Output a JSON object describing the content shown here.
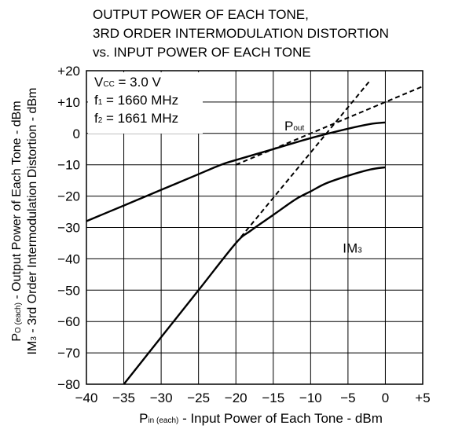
{
  "chart_data": {
    "type": "line",
    "title_lines": [
      "OUTPUT POWER OF EACH TONE,",
      "3RD ORDER INTERMODULATION DISTORTION",
      "vs. INPUT POWER OF EACH TONE"
    ],
    "xlabel": {
      "main": "P",
      "sub": "in (each)",
      "rest": " - Input Power of Each Tone - dBm"
    },
    "ylabel_lines": [
      {
        "main": "P",
        "sub": "O (each)",
        "rest": " - Output Power of Each Tone - dBm"
      },
      {
        "main": "IM",
        "sub": "3",
        "rest": " - 3rd Order Intermodulation Distortion - dBm"
      }
    ],
    "xlim": [
      -40,
      5
    ],
    "ylim": [
      -80,
      20
    ],
    "x_ticks": [
      {
        "v": -40,
        "label": "−40"
      },
      {
        "v": -35,
        "label": "−35"
      },
      {
        "v": -30,
        "label": "−30"
      },
      {
        "v": -25,
        "label": "−25"
      },
      {
        "v": -20,
        "label": "−20"
      },
      {
        "v": -15,
        "label": "−15"
      },
      {
        "v": -10,
        "label": "−10"
      },
      {
        "v": -5,
        "label": "−5"
      },
      {
        "v": 0,
        "label": "0"
      },
      {
        "v": 5,
        "label": "+5"
      }
    ],
    "y_ticks": [
      {
        "v": 20,
        "label": "+20"
      },
      {
        "v": 10,
        "label": "+10"
      },
      {
        "v": 0,
        "label": "0"
      },
      {
        "v": -10,
        "label": "−10"
      },
      {
        "v": -20,
        "label": "−20"
      },
      {
        "v": -30,
        "label": "−30"
      },
      {
        "v": -40,
        "label": "−40"
      },
      {
        "v": -50,
        "label": "−50"
      },
      {
        "v": -60,
        "label": "−60"
      },
      {
        "v": -70,
        "label": "−70"
      },
      {
        "v": -80,
        "label": "−80"
      }
    ],
    "grid": true,
    "conditions": [
      {
        "main": "V",
        "sub": "CC",
        "rest": " = 3.0 V"
      },
      {
        "main": "f",
        "sub": "1",
        "rest": " = 1660 MHz"
      },
      {
        "main": "f",
        "sub": "2",
        "rest": " = 1661 MHz"
      }
    ],
    "series": [
      {
        "name": {
          "main": "P",
          "sub": "out"
        },
        "label_at": [
          -13.5,
          2.5
        ],
        "x": [
          -40,
          -35,
          -30,
          -25,
          -22,
          -20,
          -15,
          -10,
          -5,
          -2,
          0
        ],
        "y": [
          -28,
          -23,
          -18,
          -13,
          -10,
          -8.5,
          -5,
          -1.5,
          1.5,
          3,
          3.5
        ]
      },
      {
        "name": {
          "main": "IM",
          "sub": "3"
        },
        "label_at": [
          -5.7,
          -36.5
        ],
        "x": [
          -35,
          -30,
          -25,
          -20,
          -18,
          -15,
          -12,
          -10,
          -8,
          -5,
          -2,
          0
        ],
        "y": [
          -80,
          -65,
          -50,
          -35,
          -31,
          -26,
          -21,
          -18.5,
          -16,
          -13.5,
          -11.5,
          -10.8
        ]
      }
    ],
    "extrapolation_lines": [
      {
        "style": "dashed",
        "x": [
          -20,
          5
        ],
        "y": [
          -10,
          15
        ]
      },
      {
        "style": "dashed",
        "x": [
          -20,
          -2
        ],
        "y": [
          -35,
          17
        ]
      }
    ]
  }
}
